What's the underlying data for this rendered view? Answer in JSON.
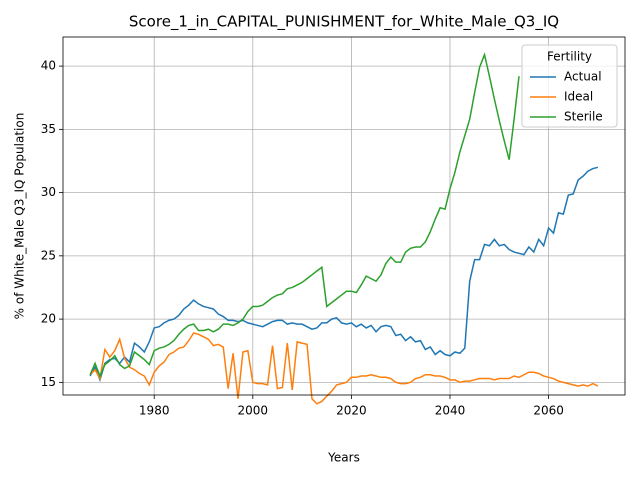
{
  "chart_data": {
    "type": "line",
    "title": "Score_1_in_CAPITAL_PUNISHMENT_for_White_Male_Q3_IQ",
    "xlabel": "Years",
    "ylabel": "% of White_Male Q3_IQ Population",
    "legend_title": "Fertility",
    "legend": "upper right",
    "grid": true,
    "x": [
      1967,
      1968,
      1969,
      1970,
      1971,
      1972,
      1973,
      1974,
      1975,
      1976,
      1977,
      1978,
      1979,
      1980,
      1981,
      1982,
      1983,
      1984,
      1985,
      1986,
      1987,
      1988,
      1989,
      1990,
      1991,
      1992,
      1993,
      1994,
      1995,
      1996,
      1997,
      1998,
      1999,
      2000,
      2001,
      2002,
      2003,
      2004,
      2005,
      2006,
      2007,
      2008,
      2009,
      2010,
      2011,
      2012,
      2013,
      2014,
      2015,
      2016,
      2017,
      2018,
      2019,
      2020,
      2021,
      2022,
      2023,
      2024,
      2025,
      2026,
      2027,
      2028,
      2029,
      2030,
      2031,
      2032,
      2033,
      2034,
      2035,
      2036,
      2037,
      2038,
      2039,
      2040,
      2041,
      2042,
      2043,
      2044,
      2045,
      2046,
      2047,
      2048,
      2049,
      2050,
      2051,
      2052,
      2053,
      2054,
      2055,
      2056,
      2057,
      2058,
      2059,
      2060,
      2061,
      2062,
      2063,
      2064,
      2065,
      2066,
      2067,
      2068,
      2069,
      2070
    ],
    "series": [
      {
        "name": "Actual",
        "color": "#1f77b4",
        "values": [
          15.5,
          16.2,
          15.2,
          16.5,
          16.8,
          16.9,
          16.5,
          17.0,
          16.6,
          18.1,
          17.8,
          17.4,
          18.2,
          19.3,
          19.4,
          19.7,
          19.9,
          20.0,
          20.3,
          20.8,
          21.1,
          21.5,
          21.2,
          21.0,
          20.9,
          20.8,
          20.4,
          20.2,
          19.9,
          19.9,
          19.8,
          19.9,
          19.7,
          19.6,
          19.5,
          19.4,
          19.6,
          19.8,
          19.9,
          19.9,
          19.6,
          19.7,
          19.6,
          19.6,
          19.4,
          19.2,
          19.3,
          19.7,
          19.7,
          20.0,
          20.1,
          19.7,
          19.6,
          19.7,
          19.4,
          19.6,
          19.3,
          19.5,
          19.0,
          19.4,
          19.5,
          19.4,
          18.7,
          18.8,
          18.3,
          18.6,
          18.2,
          18.3,
          17.6,
          17.8,
          17.2,
          17.5,
          17.2,
          17.1,
          17.4,
          17.3,
          17.7,
          23.0,
          24.7,
          24.7,
          25.9,
          25.8,
          26.3,
          25.8,
          25.9,
          25.5,
          25.3,
          25.2,
          25.1,
          25.7,
          25.3,
          26.3,
          25.8,
          27.2,
          26.8,
          28.4,
          28.3,
          29.8,
          29.9,
          31.0,
          31.3,
          31.7,
          31.9,
          32.0
        ]
      },
      {
        "name": "Ideal",
        "color": "#ff7f0e",
        "values": [
          15.6,
          16.0,
          15.3,
          17.6,
          17.0,
          17.5,
          18.4,
          16.9,
          16.2,
          16.0,
          15.7,
          15.5,
          14.8,
          15.8,
          16.3,
          16.6,
          17.2,
          17.4,
          17.7,
          17.8,
          18.3,
          18.9,
          18.8,
          18.6,
          18.4,
          17.9,
          18.0,
          17.8,
          14.5,
          17.3,
          13.7,
          17.4,
          17.5,
          15.0,
          14.9,
          14.9,
          14.8,
          17.9,
          14.5,
          14.6,
          18.1,
          14.4,
          18.2,
          18.1,
          18.0,
          13.7,
          13.3,
          13.5,
          13.9,
          14.3,
          14.8,
          14.9,
          15.0,
          15.4,
          15.4,
          15.5,
          15.5,
          15.6,
          15.5,
          15.4,
          15.4,
          15.3,
          15.0,
          14.9,
          14.9,
          15.0,
          15.3,
          15.4,
          15.6,
          15.6,
          15.5,
          15.5,
          15.4,
          15.2,
          15.2,
          15.0,
          15.1,
          15.1,
          15.2,
          15.3,
          15.3,
          15.3,
          15.2,
          15.3,
          15.3,
          15.3,
          15.5,
          15.4,
          15.6,
          15.8,
          15.8,
          15.7,
          15.5,
          15.4,
          15.3,
          15.1,
          15.0,
          14.9,
          14.8,
          14.7,
          14.8,
          14.7,
          14.9,
          14.7
        ]
      },
      {
        "name": "Sterile",
        "color": "#2ca02c",
        "values": [
          15.6,
          16.5,
          15.5,
          16.4,
          16.7,
          17.1,
          16.4,
          16.1,
          16.3,
          17.4,
          17.1,
          16.8,
          16.4,
          17.5,
          17.7,
          17.8,
          18.0,
          18.3,
          18.8,
          19.2,
          19.5,
          19.6,
          19.1,
          19.1,
          19.2,
          19.0,
          19.2,
          19.6,
          19.6,
          19.5,
          19.7,
          20.0,
          20.6,
          21.0,
          21.0,
          21.1,
          21.4,
          21.7,
          21.9,
          22.0,
          22.4,
          22.5,
          22.7,
          22.9,
          23.2,
          23.5,
          23.8,
          24.1,
          21.0,
          21.3,
          21.6,
          21.9,
          22.2,
          22.2,
          22.1,
          22.7,
          23.4,
          23.2,
          23.0,
          23.5,
          24.4,
          24.9,
          24.5,
          24.5,
          25.3,
          25.6,
          25.7,
          25.7,
          26.1,
          26.9,
          27.9,
          28.8,
          28.7,
          30.3,
          31.6,
          33.2,
          34.5,
          35.8,
          37.9,
          39.9,
          40.9,
          39.2,
          37.4,
          35.7,
          34.1,
          32.6,
          35.8,
          39.2,
          null,
          null,
          null,
          null,
          null,
          null,
          null,
          null,
          null,
          null,
          null,
          null,
          null,
          null,
          null,
          null
        ]
      }
    ],
    "xlim": [
      1961.5,
      2075.5
    ],
    "xticks": [
      1980,
      2000,
      2020,
      2040,
      2060
    ],
    "ylim": [
      14,
      42.3
    ],
    "yticks": [
      15,
      20,
      25,
      30,
      35,
      40
    ]
  }
}
